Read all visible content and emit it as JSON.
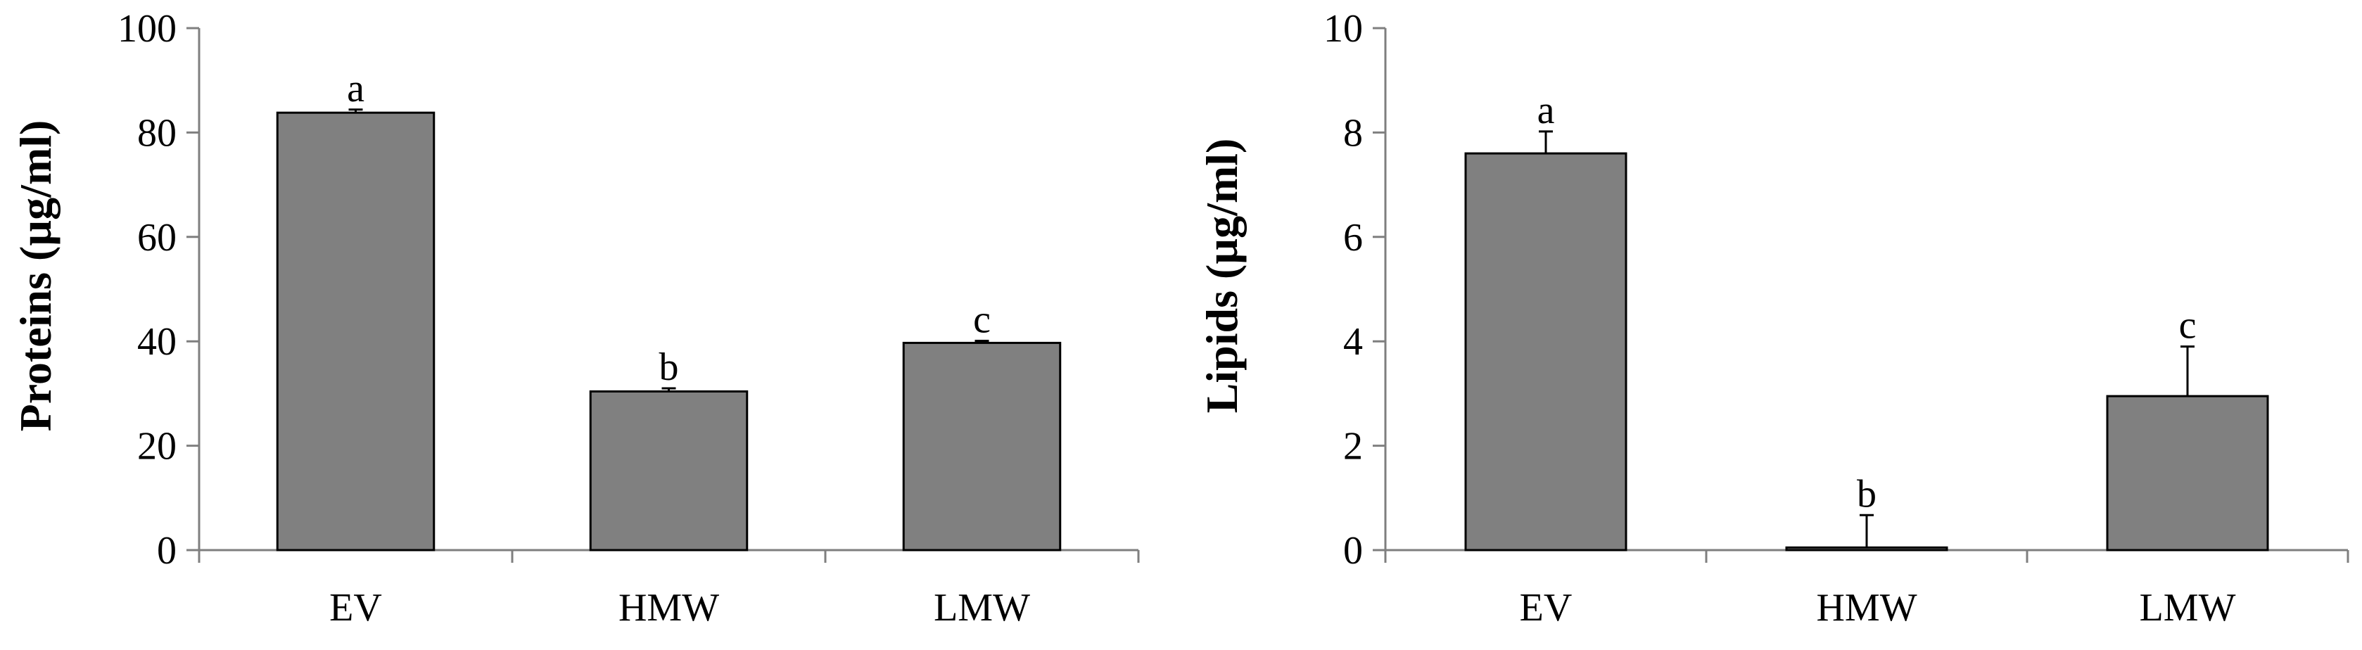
{
  "chart_data": [
    {
      "type": "bar",
      "categories": [
        "EV",
        "HMW",
        "LMW"
      ],
      "values": [
        83.8,
        30.4,
        39.7
      ],
      "errors": [
        0.6,
        0.6,
        0.4
      ],
      "significance": [
        "a",
        "b",
        "c"
      ],
      "title": "",
      "xlabel": "",
      "ylabel": "Proteins (µg/ml)",
      "ylim": [
        0,
        100
      ],
      "yticks": [
        0,
        20,
        40,
        60,
        80,
        100
      ],
      "ytick_labels": [
        "0",
        "20",
        "40",
        "60",
        "80",
        "100"
      ],
      "grid": false,
      "bar_color": "#808080"
    },
    {
      "type": "bar",
      "categories": [
        "EV",
        "HMW",
        "LMW"
      ],
      "values": [
        7.6,
        0.05,
        2.95
      ],
      "errors": [
        0.42,
        0.62,
        0.95
      ],
      "significance": [
        "a",
        "b",
        "c"
      ],
      "title": "",
      "xlabel": "",
      "ylabel": "Lipids (µg/ml)",
      "ylim": [
        0,
        10
      ],
      "yticks": [
        0,
        2,
        4,
        6,
        8,
        10
      ],
      "ytick_labels": [
        "0",
        "2",
        "4",
        "6",
        "8",
        "10"
      ],
      "grid": false,
      "bar_color": "#808080"
    }
  ]
}
